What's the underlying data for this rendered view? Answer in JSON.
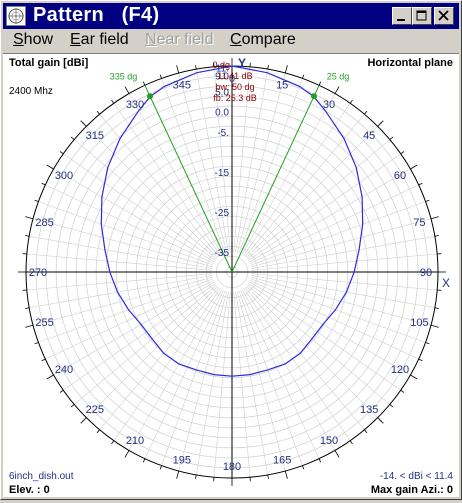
{
  "window": {
    "title": "Pattern   (F4)",
    "buttons": {
      "minimize": "minimize",
      "maximize": "maximize",
      "close": "close"
    }
  },
  "menu": [
    {
      "label": "Show",
      "accel": "S",
      "rest": "how",
      "enabled": true
    },
    {
      "label": "Ear field",
      "accel": "E",
      "rest": "ar field",
      "enabled": true
    },
    {
      "label": "Near field",
      "accel": "N",
      "rest": "ear field",
      "enabled": false
    },
    {
      "label": "Compare",
      "accel": "C",
      "rest": "ompare",
      "enabled": true
    }
  ],
  "plot": {
    "top_left": "Total gain [dBi]",
    "top_right": "Horizontal plane",
    "frequency": "2400 Mhz",
    "filename": "6inch_dish.out",
    "range_label": "-14. < dBi < 11.4",
    "elevation": "Elev. : 0",
    "max_gain_azimuth": "Max gain Azi.: 0",
    "y_axis_letter": "Y",
    "x_axis_letter": "X",
    "info_box": [
      "0 dg",
      "11.41 dB",
      "bw: 50 dg",
      "fb: 25.3 dB"
    ],
    "beam_labels": [
      "335 dg",
      "25 dg"
    ],
    "azimuth_labels": [
      "0",
      "15",
      "30",
      "45",
      "60",
      "75",
      "90",
      "105",
      "120",
      "135",
      "150",
      "165",
      "180",
      "195",
      "210",
      "225",
      "240",
      "255",
      "270",
      "285",
      "300",
      "315",
      "330",
      "345"
    ],
    "ring_labels": [
      "11.",
      "9.0",
      "5.0",
      "0.0",
      "-5.",
      "-15",
      "-25",
      "-35"
    ],
    "colors": {
      "pattern": "#2a2ae0",
      "beam": "#22a022",
      "info": "#8b0000",
      "grid": "#cfcfcf",
      "label_blue": "#223080",
      "axis": "#000000"
    }
  },
  "chart_data": {
    "type": "polar",
    "title": "Total gain [dBi]",
    "plane": "Horizontal plane",
    "frequency": "2400 Mhz",
    "units": "dBi",
    "max_gain_dbi": 11.41,
    "max_gain_azimuth_deg": 0,
    "beamwidth_deg": 50,
    "front_to_back_db": 25.3,
    "beam_edges_deg": [
      335,
      25
    ],
    "gain_range_dbi": [
      -14,
      11.4
    ],
    "series": [
      {
        "azimuth_deg": [
          0,
          10,
          20,
          25,
          30,
          40,
          50,
          60,
          70,
          80,
          90,
          100,
          110,
          120,
          130,
          140,
          150,
          160,
          170,
          180,
          190,
          200,
          210,
          220,
          230,
          240,
          250,
          260,
          270,
          280,
          290,
          300,
          310,
          320,
          330,
          335,
          340,
          350
        ],
        "gain_dbi": [
          11.4,
          10.5,
          9.3,
          8.3,
          6.5,
          3.5,
          0.5,
          -2.5,
          -5.3,
          -7.8,
          -9.5,
          -11.0,
          -12.5,
          -13.8,
          -14.0,
          -13.5,
          -13.5,
          -14.0,
          -14.0,
          -14.0,
          -14.0,
          -14.0,
          -13.5,
          -13.5,
          -14.0,
          -13.8,
          -12.5,
          -11.0,
          -9.5,
          -7.8,
          -5.3,
          -2.5,
          0.5,
          3.5,
          6.5,
          8.3,
          9.3,
          10.5
        ]
      }
    ]
  }
}
